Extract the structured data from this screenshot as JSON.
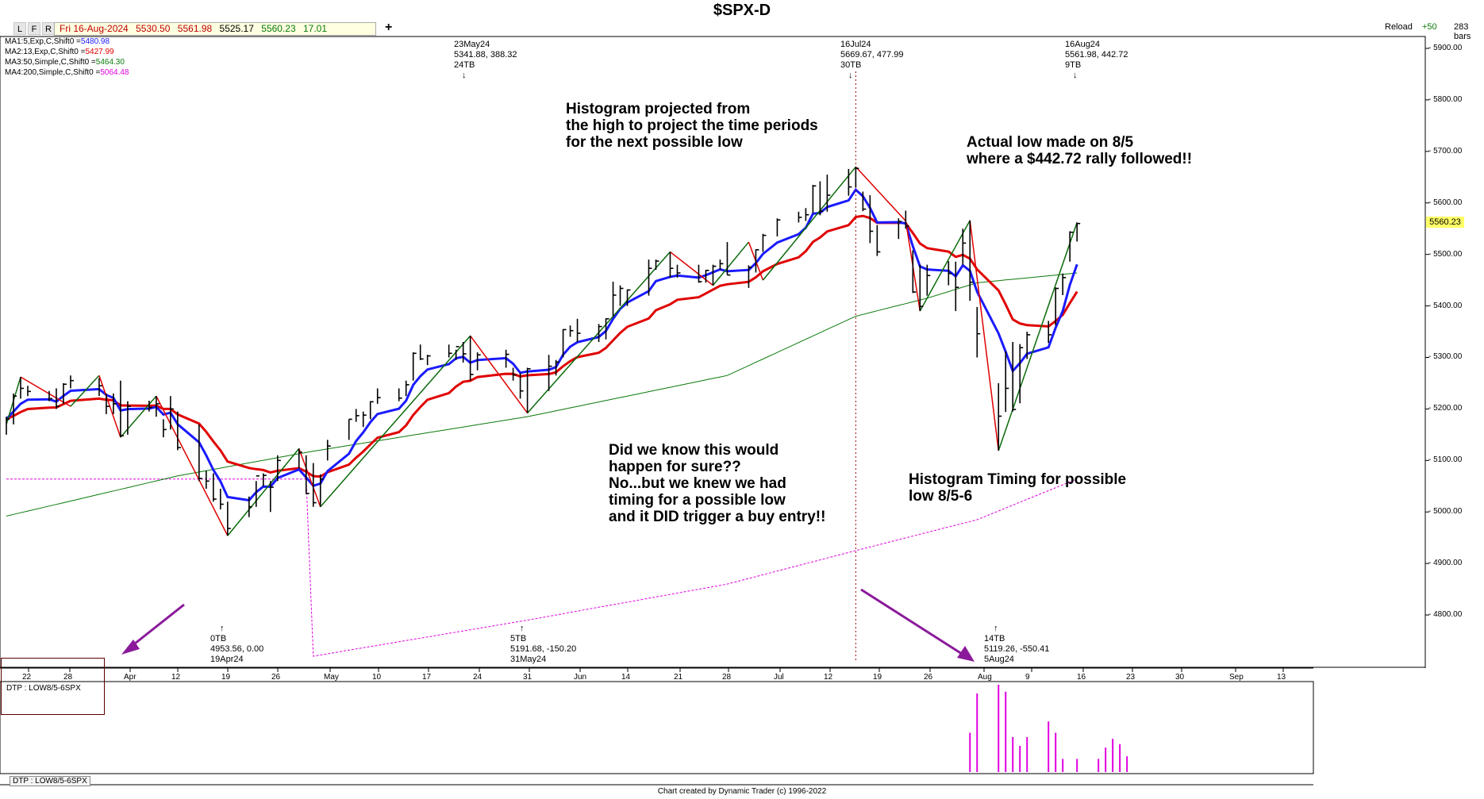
{
  "app": {
    "title": "$SPX-D",
    "toolbar_buttons": [
      "L",
      "F",
      "R"
    ],
    "quote": {
      "date": "Fri 16-Aug-2024",
      "open": "5530.50",
      "high": "5561.98",
      "low": "5525.17",
      "close": "5560.23",
      "change": "17.01"
    },
    "plus_label": "+",
    "reload_label": "Reload",
    "reload_delta": "+50",
    "bars_label": "283 bars",
    "footer": "Chart created by Dynamic Trader  (c)  1996-2022"
  },
  "legend": {
    "ma1": {
      "text": "MA1:5,Exp,C,Shift0 =",
      "value": "5480.98",
      "color": "#1a1aff"
    },
    "ma2": {
      "text": "MA2:13,Exp,C,Shift0 =",
      "value": "5427.99",
      "color": "#e00000"
    },
    "ma3": {
      "text": "MA3:50,Simple,C,Shift0 =",
      "value": "5464.30",
      "color": "#0a7a0a"
    },
    "ma4": {
      "text": "MA4:200,Simple,C,Shift0 =",
      "value": "5064.48",
      "color": "#e000e0"
    }
  },
  "axis": {
    "y_ticks": [
      "5900.00",
      "5800.00",
      "5700.00",
      "5600.00",
      "5500.00",
      "5400.00",
      "5300.00",
      "5200.00",
      "5100.00",
      "5000.00",
      "4900.00",
      "4800.00"
    ],
    "last_price": "5560.23",
    "x_ticks": [
      "22",
      "28",
      "Apr",
      "12",
      "19",
      "26",
      "May",
      "10",
      "17",
      "24",
      "31",
      "Jun",
      "14",
      "21",
      "28",
      "Jul",
      "12",
      "19",
      "26",
      "Aug",
      "9",
      "16",
      "23",
      "30",
      "Sep",
      "13"
    ]
  },
  "swing_labels": {
    "top1": {
      "date": "23May24",
      "values": "5341.88, 388.32",
      "bars": "24TB",
      "arrow": "↓"
    },
    "top2": {
      "date": "16Jul24",
      "values": "5669.67, 477.99",
      "bars": "30TB",
      "arrow": "↓"
    },
    "top3": {
      "date": "16Aug24",
      "values": "5561.98, 442.72",
      "bars": "9TB",
      "arrow": "↓"
    },
    "bot1": {
      "arrow": "↑",
      "bars": "0TB",
      "values": "4953.56, 0.00",
      "date": "19Apr24"
    },
    "bot2": {
      "arrow": "↑",
      "bars": "5TB",
      "values": "5191.68, -150.20",
      "date": "31May24"
    },
    "bot3": {
      "arrow": "↑",
      "bars": "14TB",
      "values": "5119.26, -550.41",
      "date": "5Aug24"
    }
  },
  "notes": {
    "n1": "Histogram projected from\nthe high to project the time periods\nfor the next possible low",
    "n2": "Actual low made on 8/5\nwhere a $442.72 rally followed!!",
    "n3": "Did we know this would\nhappen for sure??\nNo...but we knew we had\ntiming for a possible low\nand it DID trigger a buy entry!!",
    "n4": "Histogram Timing for possible\nlow 8/5-6"
  },
  "lower_panel": {
    "label": "DTP : LOW8/5-6SPX",
    "tab_label": "DTP : LOW8/5-6SPX"
  },
  "colors": {
    "ma1": "#1a1aff",
    "ma2": "#e00000",
    "ma3": "#0a7a0a",
    "ma4": "#e000e0",
    "swing_up": "#0a6a0a",
    "swing_down": "#e00000",
    "histogram": "#e000e0",
    "arrow": "#8a1a9a",
    "vline": "#a00000"
  },
  "chart_data": {
    "type": "line",
    "title": "$SPX-D",
    "y_range": [
      4700,
      5920
    ],
    "x_range_dates": [
      "2024-03-19",
      "2024-09-18"
    ],
    "price_bars": [
      {
        "date": "2024-03-19",
        "high": 5185,
        "low": 5150,
        "close": 5180
      },
      {
        "date": "2024-03-20",
        "high": 5230,
        "low": 5170,
        "close": 5225
      },
      {
        "date": "2024-03-21",
        "high": 5262,
        "low": 5220,
        "close": 5240
      },
      {
        "date": "2024-03-22",
        "high": 5245,
        "low": 5225,
        "close": 5234
      },
      {
        "date": "2024-03-25",
        "high": 5235,
        "low": 5215,
        "close": 5220
      },
      {
        "date": "2024-03-26",
        "high": 5240,
        "low": 5200,
        "close": 5205
      },
      {
        "date": "2024-03-27",
        "high": 5250,
        "low": 5210,
        "close": 5248
      },
      {
        "date": "2024-03-28",
        "high": 5265,
        "low": 5240,
        "close": 5255
      },
      {
        "date": "2024-04-01",
        "high": 5260,
        "low": 5225,
        "close": 5245
      },
      {
        "date": "2024-04-02",
        "high": 5230,
        "low": 5190,
        "close": 5205
      },
      {
        "date": "2024-04-03",
        "high": 5230,
        "low": 5190,
        "close": 5210
      },
      {
        "date": "2024-04-04",
        "high": 5255,
        "low": 5145,
        "close": 5148
      },
      {
        "date": "2024-04-05",
        "high": 5215,
        "low": 5150,
        "close": 5205
      },
      {
        "date": "2024-04-08",
        "high": 5216,
        "low": 5195,
        "close": 5203
      },
      {
        "date": "2024-04-09",
        "high": 5225,
        "low": 5185,
        "close": 5210
      },
      {
        "date": "2024-04-10",
        "high": 5180,
        "low": 5145,
        "close": 5160
      },
      {
        "date": "2024-04-11",
        "high": 5225,
        "low": 5160,
        "close": 5200
      },
      {
        "date": "2024-04-12",
        "high": 5195,
        "low": 5120,
        "close": 5125
      },
      {
        "date": "2024-04-15",
        "high": 5170,
        "low": 5060,
        "close": 5065
      },
      {
        "date": "2024-04-16",
        "high": 5080,
        "low": 5045,
        "close": 5060
      },
      {
        "date": "2024-04-17",
        "high": 5075,
        "low": 5020,
        "close": 5025
      },
      {
        "date": "2024-04-18",
        "high": 5045,
        "low": 5005,
        "close": 5015
      },
      {
        "date": "2024-04-19",
        "high": 5020,
        "low": 4954,
        "close": 4968
      },
      {
        "date": "2024-04-22",
        "high": 5030,
        "low": 4990,
        "close": 5010
      },
      {
        "date": "2024-04-23",
        "high": 5060,
        "low": 5010,
        "close": 5070
      },
      {
        "date": "2024-04-24",
        "high": 5075,
        "low": 5050,
        "close": 5071
      },
      {
        "date": "2024-04-25",
        "high": 5060,
        "low": 5000,
        "close": 5048
      },
      {
        "date": "2024-04-26",
        "high": 5110,
        "low": 5060,
        "close": 5100
      },
      {
        "date": "2024-04-29",
        "high": 5123,
        "low": 5085,
        "close": 5116
      },
      {
        "date": "2024-04-30",
        "high": 5110,
        "low": 5035,
        "close": 5036
      },
      {
        "date": "2024-05-01",
        "high": 5095,
        "low": 5010,
        "close": 5018
      },
      {
        "date": "2024-05-02",
        "high": 5073,
        "low": 5010,
        "close": 5064
      },
      {
        "date": "2024-05-03",
        "high": 5140,
        "low": 5100,
        "close": 5128
      },
      {
        "date": "2024-05-06",
        "high": 5180,
        "low": 5140,
        "close": 5180
      },
      {
        "date": "2024-05-07",
        "high": 5200,
        "low": 5175,
        "close": 5187
      },
      {
        "date": "2024-05-08",
        "high": 5195,
        "low": 5165,
        "close": 5188
      },
      {
        "date": "2024-05-09",
        "high": 5215,
        "low": 5180,
        "close": 5214
      },
      {
        "date": "2024-05-10",
        "high": 5240,
        "low": 5210,
        "close": 5222
      },
      {
        "date": "2024-05-13",
        "high": 5240,
        "low": 5215,
        "close": 5221
      },
      {
        "date": "2024-05-14",
        "high": 5255,
        "low": 5225,
        "close": 5247
      },
      {
        "date": "2024-05-15",
        "high": 5310,
        "low": 5255,
        "close": 5308
      },
      {
        "date": "2024-05-16",
        "high": 5325,
        "low": 5295,
        "close": 5297
      },
      {
        "date": "2024-05-17",
        "high": 5305,
        "low": 5285,
        "close": 5303
      },
      {
        "date": "2024-05-20",
        "high": 5325,
        "low": 5300,
        "close": 5308
      },
      {
        "date": "2024-05-21",
        "high": 5315,
        "low": 5295,
        "close": 5321
      },
      {
        "date": "2024-05-22",
        "high": 5330,
        "low": 5290,
        "close": 5307
      },
      {
        "date": "2024-05-23",
        "high": 5342,
        "low": 5255,
        "close": 5267
      },
      {
        "date": "2024-05-24",
        "high": 5310,
        "low": 5275,
        "close": 5305
      },
      {
        "date": "2024-05-28",
        "high": 5315,
        "low": 5280,
        "close": 5306
      },
      {
        "date": "2024-05-29",
        "high": 5280,
        "low": 5255,
        "close": 5266
      },
      {
        "date": "2024-05-30",
        "high": 5270,
        "low": 5220,
        "close": 5235
      },
      {
        "date": "2024-05-31",
        "high": 5280,
        "low": 5192,
        "close": 5278
      },
      {
        "date": "2024-06-03",
        "high": 5305,
        "low": 5235,
        "close": 5283
      },
      {
        "date": "2024-06-04",
        "high": 5295,
        "low": 5265,
        "close": 5291
      },
      {
        "date": "2024-06-05",
        "high": 5355,
        "low": 5300,
        "close": 5354
      },
      {
        "date": "2024-06-06",
        "high": 5362,
        "low": 5340,
        "close": 5352
      },
      {
        "date": "2024-06-07",
        "high": 5375,
        "low": 5330,
        "close": 5347
      },
      {
        "date": "2024-06-10",
        "high": 5365,
        "low": 5330,
        "close": 5360
      },
      {
        "date": "2024-06-11",
        "high": 5376,
        "low": 5335,
        "close": 5375
      },
      {
        "date": "2024-06-12",
        "high": 5447,
        "low": 5380,
        "close": 5421
      },
      {
        "date": "2024-06-13",
        "high": 5440,
        "low": 5400,
        "close": 5434
      },
      {
        "date": "2024-06-14",
        "high": 5432,
        "low": 5400,
        "close": 5431
      },
      {
        "date": "2024-06-17",
        "high": 5490,
        "low": 5420,
        "close": 5473
      },
      {
        "date": "2024-06-18",
        "high": 5490,
        "low": 5470,
        "close": 5487
      },
      {
        "date": "2024-06-20",
        "high": 5505,
        "low": 5455,
        "close": 5473
      },
      {
        "date": "2024-06-21",
        "high": 5480,
        "low": 5455,
        "close": 5464
      },
      {
        "date": "2024-06-24",
        "high": 5480,
        "low": 5445,
        "close": 5447
      },
      {
        "date": "2024-06-25",
        "high": 5470,
        "low": 5445,
        "close": 5469
      },
      {
        "date": "2024-06-26",
        "high": 5480,
        "low": 5440,
        "close": 5477
      },
      {
        "date": "2024-06-27",
        "high": 5490,
        "low": 5470,
        "close": 5482
      },
      {
        "date": "2024-06-28",
        "high": 5524,
        "low": 5460,
        "close": 5460
      },
      {
        "date": "2024-07-01",
        "high": 5479,
        "low": 5435,
        "close": 5475
      },
      {
        "date": "2024-07-02",
        "high": 5510,
        "low": 5465,
        "close": 5509
      },
      {
        "date": "2024-07-03",
        "high": 5540,
        "low": 5505,
        "close": 5537
      },
      {
        "date": "2024-07-05",
        "high": 5570,
        "low": 5535,
        "close": 5567
      },
      {
        "date": "2024-07-08",
        "high": 5583,
        "low": 5562,
        "close": 5572
      },
      {
        "date": "2024-07-09",
        "high": 5590,
        "low": 5565,
        "close": 5577
      },
      {
        "date": "2024-07-10",
        "high": 5635,
        "low": 5580,
        "close": 5633
      },
      {
        "date": "2024-07-11",
        "high": 5642,
        "low": 5576,
        "close": 5584
      },
      {
        "date": "2024-07-12",
        "high": 5655,
        "low": 5583,
        "close": 5615
      },
      {
        "date": "2024-07-15",
        "high": 5666,
        "low": 5614,
        "close": 5631
      },
      {
        "date": "2024-07-16",
        "high": 5670,
        "low": 5630,
        "close": 5667
      },
      {
        "date": "2024-07-17",
        "high": 5622,
        "low": 5584,
        "close": 5588
      },
      {
        "date": "2024-07-18",
        "high": 5615,
        "low": 5522,
        "close": 5545
      },
      {
        "date": "2024-07-19",
        "high": 5557,
        "low": 5497,
        "close": 5505
      },
      {
        "date": "2024-07-22",
        "high": 5570,
        "low": 5530,
        "close": 5564
      },
      {
        "date": "2024-07-23",
        "high": 5585,
        "low": 5550,
        "close": 5555
      },
      {
        "date": "2024-07-24",
        "high": 5508,
        "low": 5425,
        "close": 5427
      },
      {
        "date": "2024-07-25",
        "high": 5480,
        "low": 5390,
        "close": 5399
      },
      {
        "date": "2024-07-26",
        "high": 5480,
        "low": 5420,
        "close": 5459
      },
      {
        "date": "2024-07-29",
        "high": 5487,
        "low": 5440,
        "close": 5463
      },
      {
        "date": "2024-07-30",
        "high": 5486,
        "low": 5390,
        "close": 5436
      },
      {
        "date": "2024-07-31",
        "high": 5550,
        "low": 5480,
        "close": 5522
      },
      {
        "date": "2024-08-01",
        "high": 5566,
        "low": 5410,
        "close": 5446
      },
      {
        "date": "2024-08-02",
        "high": 5398,
        "low": 5300,
        "close": 5346
      },
      {
        "date": "2024-08-05",
        "high": 5250,
        "low": 5119,
        "close": 5186
      },
      {
        "date": "2024-08-06",
        "high": 5312,
        "low": 5194,
        "close": 5240
      },
      {
        "date": "2024-08-07",
        "high": 5330,
        "low": 5195,
        "close": 5199
      },
      {
        "date": "2024-08-08",
        "high": 5326,
        "low": 5211,
        "close": 5319
      },
      {
        "date": "2024-08-09",
        "high": 5350,
        "low": 5297,
        "close": 5344
      },
      {
        "date": "2024-08-12",
        "high": 5371,
        "low": 5328,
        "close": 5344
      },
      {
        "date": "2024-08-13",
        "high": 5436,
        "low": 5362,
        "close": 5434
      },
      {
        "date": "2024-08-14",
        "high": 5463,
        "low": 5421,
        "close": 5455
      },
      {
        "date": "2024-08-15",
        "high": 5545,
        "low": 5486,
        "close": 5543
      },
      {
        "date": "2024-08-16",
        "high": 5562,
        "low": 5525,
        "close": 5560
      }
    ],
    "ma1_last": 5480.98,
    "ma2_last": 5427.99,
    "ma3_last": 5464.3,
    "ma4_last": 5064.48,
    "swing_points": [
      {
        "date": "2024-03-19",
        "price": 5170
      },
      {
        "date": "2024-03-21",
        "price": 5262
      },
      {
        "date": "2024-03-28",
        "price": 5205
      },
      {
        "date": "2024-04-01",
        "price": 5265
      },
      {
        "date": "2024-04-04",
        "price": 5145
      },
      {
        "date": "2024-04-09",
        "price": 5225
      },
      {
        "date": "2024-04-19",
        "price": 4954
      },
      {
        "date": "2024-04-29",
        "price": 5123
      },
      {
        "date": "2024-05-02",
        "price": 5010
      },
      {
        "date": "2024-05-23",
        "price": 5342
      },
      {
        "date": "2024-05-31",
        "price": 5192
      },
      {
        "date": "2024-06-20",
        "price": 5505
      },
      {
        "date": "2024-06-26",
        "price": 5440
      },
      {
        "date": "2024-07-01",
        "price": 5524
      },
      {
        "date": "2024-07-03",
        "price": 5450
      },
      {
        "date": "2024-07-16",
        "price": 5670
      },
      {
        "date": "2024-07-23",
        "price": 5565
      },
      {
        "date": "2024-07-25",
        "price": 5390
      },
      {
        "date": "2024-08-01",
        "price": 5566
      },
      {
        "date": "2024-08-05",
        "price": 5119
      },
      {
        "date": "2024-08-16",
        "price": 5562
      }
    ],
    "vertical_marker_date": "2024-07-16",
    "histogram": {
      "label": "DTP : LOW8/5-6SPX",
      "bars": [
        {
          "date": "2024-08-01",
          "value": 0.45
        },
        {
          "date": "2024-08-02",
          "value": 0.9
        },
        {
          "date": "2024-08-05",
          "value": 1.0
        },
        {
          "date": "2024-08-06",
          "value": 0.92
        },
        {
          "date": "2024-08-07",
          "value": 0.4
        },
        {
          "date": "2024-08-08",
          "value": 0.3
        },
        {
          "date": "2024-08-09",
          "value": 0.4
        },
        {
          "date": "2024-08-12",
          "value": 0.58
        },
        {
          "date": "2024-08-13",
          "value": 0.45
        },
        {
          "date": "2024-08-14",
          "value": 0.15
        },
        {
          "date": "2024-08-16",
          "value": 0.15
        },
        {
          "date": "2024-08-19",
          "value": 0.15
        },
        {
          "date": "2024-08-20",
          "value": 0.28
        },
        {
          "date": "2024-08-21",
          "value": 0.38
        },
        {
          "date": "2024-08-22",
          "value": 0.32
        },
        {
          "date": "2024-08-23",
          "value": 0.18
        }
      ]
    }
  }
}
